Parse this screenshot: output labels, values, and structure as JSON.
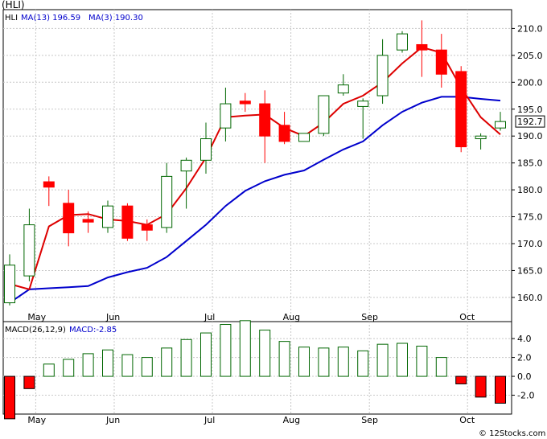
{
  "chart_data": [
    {
      "type": "candlestick",
      "title": "(HLI)",
      "indicators": [
        {
          "name": "MA(13)",
          "value": "196.59",
          "color": "#0000cc"
        },
        {
          "name": "MA(3)",
          "value": "190.30",
          "color": "#dd0000"
        }
      ],
      "last_price_label": "192.7",
      "ylim": [
        155.5,
        213.5
      ],
      "yticks": [
        "160.0",
        "165.0",
        "170.0",
        "175.0",
        "180.0",
        "185.0",
        "190.0",
        "195.0",
        "200.0",
        "205.0",
        "210.0"
      ],
      "ytick_values": [
        160,
        165,
        170,
        175,
        180,
        185,
        190,
        195,
        200,
        205,
        210
      ],
      "months": [
        {
          "label": "May",
          "index": 1
        },
        {
          "label": "Jun",
          "index": 5
        },
        {
          "label": "Jul",
          "index": 10
        },
        {
          "label": "Aug",
          "index": 14
        },
        {
          "label": "Sep",
          "index": 18
        },
        {
          "label": "Oct",
          "index": 23
        }
      ],
      "candles": [
        {
          "o": 159.0,
          "h": 168.0,
          "l": 158.5,
          "c": 166.0
        },
        {
          "o": 164.0,
          "h": 176.5,
          "l": 163.0,
          "c": 173.5
        },
        {
          "o": 181.5,
          "h": 182.5,
          "l": 177.0,
          "c": 180.5
        },
        {
          "o": 177.5,
          "h": 180.0,
          "l": 169.5,
          "c": 172.0
        },
        {
          "o": 174.5,
          "h": 176.0,
          "l": 172.0,
          "c": 174.0
        },
        {
          "o": 173.0,
          "h": 178.0,
          "l": 172.0,
          "c": 177.0
        },
        {
          "o": 177.0,
          "h": 177.5,
          "l": 170.5,
          "c": 171.0
        },
        {
          "o": 173.5,
          "h": 174.5,
          "l": 170.5,
          "c": 172.5
        },
        {
          "o": 173.0,
          "h": 185.0,
          "l": 172.0,
          "c": 182.5
        },
        {
          "o": 183.5,
          "h": 186.0,
          "l": 176.5,
          "c": 185.5
        },
        {
          "o": 185.5,
          "h": 192.5,
          "l": 183.0,
          "c": 189.5
        },
        {
          "o": 191.5,
          "h": 199.0,
          "l": 189.0,
          "c": 196.0
        },
        {
          "o": 196.5,
          "h": 198.0,
          "l": 194.5,
          "c": 196.0
        },
        {
          "o": 196.0,
          "h": 198.5,
          "l": 185.0,
          "c": 190.0
        },
        {
          "o": 192.0,
          "h": 194.5,
          "l": 188.5,
          "c": 189.0
        },
        {
          "o": 189.0,
          "h": 190.5,
          "l": 189.0,
          "c": 190.5
        },
        {
          "o": 190.5,
          "h": 197.5,
          "l": 190.0,
          "c": 197.5
        },
        {
          "o": 198.0,
          "h": 201.5,
          "l": 197.5,
          "c": 199.5
        },
        {
          "o": 195.5,
          "h": 197.0,
          "l": 189.5,
          "c": 196.5
        },
        {
          "o": 197.5,
          "h": 208.0,
          "l": 196.0,
          "c": 205.0
        },
        {
          "o": 206.0,
          "h": 209.5,
          "l": 205.5,
          "c": 209.0
        },
        {
          "o": 207.0,
          "h": 211.5,
          "l": 201.0,
          "c": 206.0
        },
        {
          "o": 206.0,
          "h": 209.0,
          "l": 199.0,
          "c": 201.5
        },
        {
          "o": 202.0,
          "h": 203.0,
          "l": 187.0,
          "c": 188.0
        },
        {
          "o": 189.5,
          "h": 190.5,
          "l": 187.5,
          "c": 190.0
        },
        {
          "o": 191.5,
          "h": 194.5,
          "l": 191.0,
          "c": 192.7
        }
      ],
      "ma13": [
        null,
        null,
        null,
        null,
        null,
        null,
        null,
        null,
        null,
        null,
        null,
        null,
        null,
        null,
        null,
        null,
        null,
        null,
        null,
        null,
        null,
        null,
        null,
        null,
        null,
        null
      ],
      "ma13_line": [
        {
          "i": 0,
          "v": 159.0
        },
        {
          "i": 1,
          "v": 161.5
        },
        {
          "i": 2,
          "v": 161.7
        },
        {
          "i": 3,
          "v": 161.9
        },
        {
          "i": 4,
          "v": 162.1
        },
        {
          "i": 5,
          "v": 163.7
        },
        {
          "i": 6,
          "v": 164.7
        },
        {
          "i": 7,
          "v": 165.5
        },
        {
          "i": 8,
          "v": 167.5
        },
        {
          "i": 9,
          "v": 170.5
        },
        {
          "i": 10,
          "v": 173.5
        },
        {
          "i": 11,
          "v": 177.0
        },
        {
          "i": 12,
          "v": 179.8
        },
        {
          "i": 13,
          "v": 181.6
        },
        {
          "i": 14,
          "v": 182.8
        },
        {
          "i": 15,
          "v": 183.6
        },
        {
          "i": 16,
          "v": 185.6
        },
        {
          "i": 17,
          "v": 187.5
        },
        {
          "i": 18,
          "v": 189.0
        },
        {
          "i": 19,
          "v": 192.0
        },
        {
          "i": 20,
          "v": 194.5
        },
        {
          "i": 21,
          "v": 196.2
        },
        {
          "i": 22,
          "v": 197.3
        },
        {
          "i": 23,
          "v": 197.3
        },
        {
          "i": 24,
          "v": 196.9
        },
        {
          "i": 25,
          "v": 196.59
        }
      ],
      "ma3_line": [
        {
          "i": 0,
          "v": 162.5
        },
        {
          "i": 1,
          "v": 161.5
        },
        {
          "i": 2,
          "v": 173.2
        },
        {
          "i": 3,
          "v": 175.3
        },
        {
          "i": 4,
          "v": 175.5
        },
        {
          "i": 5,
          "v": 174.5
        },
        {
          "i": 6,
          "v": 174.2
        },
        {
          "i": 7,
          "v": 173.5
        },
        {
          "i": 8,
          "v": 175.5
        },
        {
          "i": 9,
          "v": 180.3
        },
        {
          "i": 10,
          "v": 186.0
        },
        {
          "i": 11,
          "v": 193.5
        },
        {
          "i": 12,
          "v": 193.8
        },
        {
          "i": 13,
          "v": 194.0
        },
        {
          "i": 14,
          "v": 191.5
        },
        {
          "i": 15,
          "v": 190.0
        },
        {
          "i": 16,
          "v": 192.5
        },
        {
          "i": 17,
          "v": 196.0
        },
        {
          "i": 18,
          "v": 197.5
        },
        {
          "i": 19,
          "v": 200.0
        },
        {
          "i": 20,
          "v": 203.5
        },
        {
          "i": 21,
          "v": 206.5
        },
        {
          "i": 22,
          "v": 205.5
        },
        {
          "i": 23,
          "v": 199.0
        },
        {
          "i": 24,
          "v": 193.5
        },
        {
          "i": 25,
          "v": 190.3
        }
      ]
    },
    {
      "type": "bar",
      "title": "MACD(26,12,9)",
      "indicator_value": "MACD:-2.85",
      "ylim": [
        -4.0,
        5.8
      ],
      "yticks": [
        "4.0",
        "2.0",
        "0.0",
        "-2.0"
      ],
      "ytick_values": [
        4,
        2,
        0,
        -2
      ],
      "values": [
        -4.5,
        -1.3,
        1.3,
        1.8,
        2.4,
        2.8,
        2.3,
        2.0,
        3.0,
        3.9,
        4.6,
        5.5,
        5.9,
        4.9,
        3.7,
        3.1,
        3.0,
        3.1,
        2.7,
        3.4,
        3.5,
        3.2,
        2.0,
        -0.8,
        -2.2,
        -2.85
      ]
    }
  ],
  "watermark": "© 12Stocks.com",
  "colors": {
    "up": "#006600",
    "down": "#ff0000",
    "ma13": "#0000cc",
    "ma3": "#dd0000",
    "grid": "#c8c8c8",
    "text": "#000000",
    "label_blue": "#0000cc"
  }
}
